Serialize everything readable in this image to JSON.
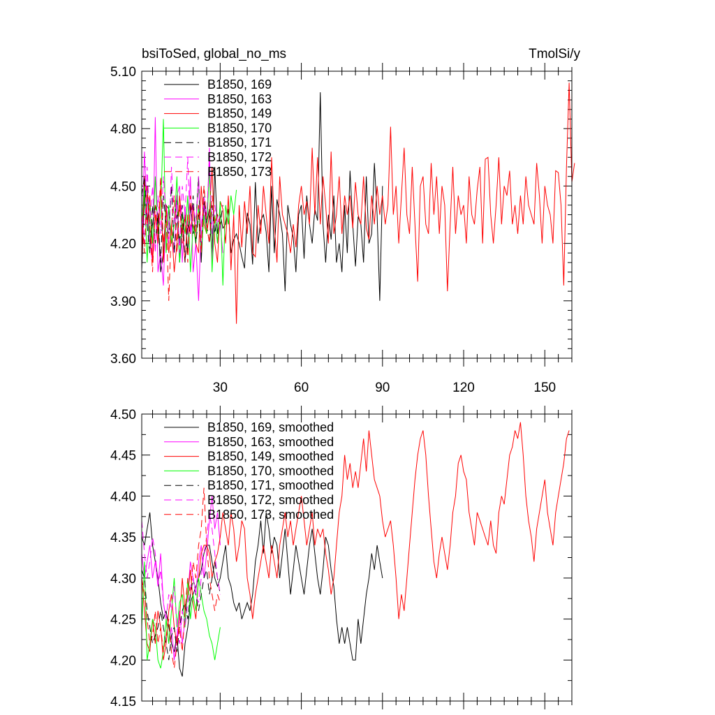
{
  "chart_data": [
    {
      "type": "line",
      "title_left": "bsiToSed, global_no_ms",
      "title_right": "TmolSi/y",
      "xlim": [
        1,
        160
      ],
      "ylim": [
        3.6,
        5.1
      ],
      "yticks": [
        "3.60",
        "3.90",
        "4.20",
        "4.50",
        "4.80",
        "5.10"
      ],
      "xticks": [
        "30",
        "60",
        "90",
        "120",
        "150"
      ],
      "grid": false,
      "legend_position": "top-left",
      "series": [
        {
          "name": "B1850, 169",
          "color": "#000000",
          "dash": "solid",
          "x_start": 1,
          "values": [
            4.06,
            4.45,
            4.5,
            4.2,
            4.3,
            4.4,
            4.35,
            4.05,
            4.15,
            4.4,
            4.38,
            4.2,
            4.3,
            4.45,
            4.1,
            4.28,
            4.35,
            4.15,
            4.4,
            4.25,
            4.3,
            4.55,
            4.1,
            4.42,
            4.3,
            4.38,
            4.12,
            4.6,
            4.25,
            4.35,
            4.28,
            4.3,
            4.38,
            4.15,
            4.22,
            4.25,
            4.2,
            4.13,
            4.07,
            4.36,
            4.3,
            4.09,
            4.52,
            4.2,
            4.32,
            4.35,
            4.26,
            4.05,
            4.5,
            4.15,
            4.43,
            4.35,
            4.25,
            3.95,
            4.4,
            4.3,
            4.23,
            4.05,
            4.35,
            4.4,
            4.12,
            4.45,
            4.3,
            4.2,
            4.38,
            4.32,
            4.99,
            4.3,
            4.1,
            4.35,
            4.22,
            4.45,
            4.1,
            4.2,
            4.05,
            4.4,
            4.15,
            4.58,
            4.3,
            4.08,
            4.34,
            4.3,
            4.1,
            4.55,
            4.2,
            4.25,
            4.62,
            4.35,
            3.9,
            4.5
          ]
        },
        {
          "name": "B1850, 163",
          "color": "#ff00ff",
          "dash": "solid",
          "x_start": 1,
          "values": [
            4.2,
            4.68,
            4.35,
            4.2,
            4.1,
            4.86,
            4.05,
            4.15,
            3.98,
            4.4,
            4.3,
            4.22,
            4.15,
            4.45,
            4.5,
            4.1,
            4.38,
            4.25,
            4.55,
            4.05,
            4.2,
            3.9,
            4.3,
            4.4,
            4.25,
            4.7,
            4.1,
            4.35,
            4.2,
            4.3,
            4.15
          ]
        },
        {
          "name": "B1850, 149",
          "color": "#ff0000",
          "dash": "solid",
          "x_start": 1,
          "values": [
            4.12,
            4.55,
            4.3,
            4.45,
            4.1,
            4.35,
            4.2,
            4.5,
            4.1,
            4.4,
            4.15,
            4.3,
            4.05,
            4.2,
            4.45,
            4.3,
            4.1,
            4.35,
            4.25,
            4.4,
            4.2,
            4.15,
            4.5,
            4.3,
            4.25,
            4.35,
            4.6,
            4.2,
            4.1,
            4.42,
            4.38,
            4.2,
            4.45,
            4.06,
            4.35,
            3.78,
            4.4,
            4.18,
            4.42,
            4.25,
            4.5,
            4.15,
            4.13,
            4.4,
            4.25,
            4.5,
            4.35,
            4.2,
            4.65,
            4.3,
            4.1,
            4.55,
            4.35,
            4.3,
            4.25,
            4.15,
            4.3,
            4.18,
            4.4,
            4.5,
            4.35,
            4.42,
            4.3,
            4.7,
            4.35,
            4.65,
            4.3,
            4.55,
            4.4,
            4.2,
            4.68,
            4.25,
            4.35,
            4.55,
            4.25,
            4.45,
            4.35,
            4.45,
            4.28,
            4.52,
            4.35,
            4.3,
            4.55,
            4.28,
            4.22,
            4.45,
            4.3,
            4.5,
            4.35,
            4.45,
            4.3,
            4.4,
            4.81,
            4.35,
            4.5,
            4.2,
            4.45,
            4.7,
            4.35,
            4.25,
            4.6,
            4.3,
            4.0,
            4.5,
            4.55,
            4.3,
            4.25,
            4.62,
            4.35,
            4.55,
            4.25,
            4.5,
            4.4,
            3.95,
            4.3,
            4.6,
            4.25,
            4.45,
            4.35,
            4.4,
            4.2,
            4.55,
            4.35,
            4.3,
            4.48,
            4.6,
            4.2,
            4.64,
            4.65,
            4.35,
            4.2,
            4.4,
            4.65,
            4.3,
            4.5,
            4.45,
            4.58,
            4.3,
            4.4,
            4.25,
            4.45,
            4.3,
            4.55,
            4.4,
            4.35,
            4.3,
            4.62,
            4.45,
            4.2,
            4.5,
            4.4,
            4.35,
            4.2,
            4.58,
            4.57,
            4.4,
            3.98,
            4.6,
            5.04,
            4.52,
            4.62
          ]
        },
        {
          "name": "B1850, 170",
          "color": "#00ff00",
          "dash": "solid",
          "x_start": 1,
          "values": [
            4.3,
            4.5,
            4.1,
            4.4,
            4.2,
            4.55,
            4.25,
            4.35,
            4.85,
            4.15,
            4.4,
            4.2,
            4.3,
            4.55,
            4.1,
            4.35,
            4.25,
            4.45,
            4.05,
            4.3,
            4.2,
            4.4,
            4.15,
            4.35,
            4.25,
            4.6,
            4.05,
            4.35,
            4.2,
            4.42,
            3.98,
            4.4,
            4.3,
            4.45,
            4.35,
            4.48
          ]
        },
        {
          "name": "B1850, 171",
          "color": "#000000",
          "dash": "dashed",
          "x_start": 1,
          "values": [
            4.45,
            4.55,
            4.3,
            4.15,
            4.4,
            4.2,
            4.35,
            4.1,
            4.45,
            4.3,
            4.25,
            4.5,
            4.15,
            4.35,
            4.2,
            4.4,
            4.1,
            4.3,
            4.25,
            4.45,
            4.2,
            4.35,
            4.15,
            4.5,
            4.3,
            4.2,
            4.4,
            4.25,
            4.35,
            4.3,
            4.4
          ]
        },
        {
          "name": "B1850, 172",
          "color": "#ff00ff",
          "dash": "dashed",
          "x_start": 1,
          "values": [
            4.4,
            4.2,
            4.6,
            4.3,
            4.5,
            4.15,
            4.45,
            4.25,
            4.55,
            4.35,
            4.2,
            4.6,
            4.3,
            4.45,
            4.15,
            4.5,
            4.35,
            4.65,
            4.25,
            4.4,
            4.3,
            4.55,
            4.2,
            4.45,
            4.35,
            4.62,
            4.25,
            4.4,
            4.3,
            4.35
          ]
        },
        {
          "name": "B1850, 173",
          "color": "#ff0000",
          "dash": "dashed",
          "x_start": 1,
          "values": [
            4.35,
            4.15,
            4.5,
            4.3,
            4.05,
            4.4,
            4.25,
            4.55,
            4.2,
            4.35,
            3.9,
            4.3,
            4.45,
            4.15,
            4.4,
            4.2,
            4.35,
            4.1,
            4.45,
            4.3,
            4.25,
            4.4,
            4.15,
            4.5,
            4.3,
            4.2,
            4.45,
            4.3,
            4.35,
            4.3
          ]
        }
      ]
    },
    {
      "type": "line",
      "xlim": [
        1,
        160
      ],
      "ylim": [
        4.15,
        4.5
      ],
      "yticks": [
        "4.15",
        "4.20",
        "4.25",
        "4.30",
        "4.35",
        "4.40",
        "4.45",
        "4.50"
      ],
      "xticks": [],
      "grid": false,
      "legend_position": "top-left",
      "series": [
        {
          "name": "B1850, 169, smoothed",
          "color": "#000000",
          "dash": "solid",
          "x_start": 1,
          "values": [
            4.35,
            4.34,
            4.36,
            4.38,
            4.34,
            4.32,
            4.3,
            4.27,
            4.25,
            4.26,
            4.24,
            4.22,
            4.21,
            4.23,
            4.19,
            4.18,
            4.22,
            4.24,
            4.27,
            4.28,
            4.29,
            4.3,
            4.31,
            4.33,
            4.34,
            4.34,
            4.32,
            4.3,
            4.29,
            4.3,
            4.32,
            4.34,
            4.3,
            4.29,
            4.27,
            4.26,
            4.27,
            4.25,
            4.26,
            4.27,
            4.26,
            4.28,
            4.32,
            4.34,
            4.37,
            4.33,
            4.38,
            4.36,
            4.33,
            4.35,
            4.34,
            4.3,
            4.33,
            4.36,
            4.32,
            4.28,
            4.31,
            4.34,
            4.32,
            4.3,
            4.28,
            4.31,
            4.34,
            4.36,
            4.33,
            4.3,
            4.28,
            4.31,
            4.35,
            4.34,
            4.31,
            4.29,
            4.25,
            4.22,
            4.24,
            4.22,
            4.24,
            4.22,
            4.2,
            4.2,
            4.25,
            4.22,
            4.25,
            4.28,
            4.3,
            4.33,
            4.31,
            4.34,
            4.32,
            4.3
          ]
        },
        {
          "name": "B1850, 163, smoothed",
          "color": "#ff00ff",
          "dash": "solid",
          "x_start": 1,
          "values": [
            4.33,
            4.3,
            4.32,
            4.34,
            4.3,
            4.32,
            4.29,
            4.33,
            4.27,
            4.25,
            4.22,
            4.24,
            4.2,
            4.23,
            4.26,
            4.22,
            4.25,
            4.28,
            4.32,
            4.3,
            4.28,
            4.32,
            4.34,
            4.3,
            4.33,
            4.37,
            4.4,
            4.36,
            4.38,
            4.34
          ]
        },
        {
          "name": "B1850, 149, smoothed",
          "color": "#ff0000",
          "dash": "solid",
          "x_start": 1,
          "values": [
            4.3,
            4.26,
            4.22,
            4.21,
            4.25,
            4.22,
            4.26,
            4.24,
            4.2,
            4.22,
            4.26,
            4.28,
            4.24,
            4.22,
            4.25,
            4.3,
            4.26,
            4.28,
            4.31,
            4.27,
            4.25,
            4.3,
            4.33,
            4.34,
            4.34,
            4.33,
            4.3,
            4.32,
            4.33,
            4.35,
            4.38,
            4.36,
            4.34,
            4.38,
            4.36,
            4.32,
            4.34,
            4.37,
            4.36,
            4.3,
            4.28,
            4.25,
            4.28,
            4.3,
            4.32,
            4.34,
            4.32,
            4.3,
            4.34,
            4.32,
            4.3,
            4.34,
            4.36,
            4.38,
            4.35,
            4.37,
            4.34,
            4.36,
            4.38,
            4.4,
            4.37,
            4.34,
            4.36,
            4.38,
            4.34,
            4.36,
            4.35,
            4.36,
            4.33,
            4.31,
            4.28,
            4.3,
            4.34,
            4.38,
            4.4,
            4.45,
            4.42,
            4.44,
            4.41,
            4.43,
            4.41,
            4.44,
            4.47,
            4.43,
            4.48,
            4.45,
            4.42,
            4.41,
            4.4,
            4.37,
            4.35,
            4.36,
            4.37,
            4.34,
            4.3,
            4.25,
            4.28,
            4.26,
            4.3,
            4.34,
            4.38,
            4.42,
            4.45,
            4.47,
            4.48,
            4.45,
            4.4,
            4.36,
            4.32,
            4.3,
            4.33,
            4.35,
            4.33,
            4.31,
            4.34,
            4.38,
            4.4,
            4.44,
            4.45,
            4.43,
            4.42,
            4.38,
            4.36,
            4.34,
            4.38,
            4.37,
            4.36,
            4.35,
            4.34,
            4.37,
            4.34,
            4.33,
            4.38,
            4.4,
            4.39,
            4.42,
            4.45,
            4.46,
            4.48,
            4.47,
            4.49,
            4.45,
            4.4,
            4.37,
            4.35,
            4.32,
            4.36,
            4.38,
            4.4,
            4.42,
            4.38,
            4.36,
            4.34,
            4.38,
            4.4,
            4.42,
            4.44,
            4.47,
            4.48
          ]
        },
        {
          "name": "B1850, 170, smoothed",
          "color": "#00ff00",
          "dash": "solid",
          "x_start": 1,
          "values": [
            4.24,
            4.32,
            4.2,
            4.22,
            4.25,
            4.24,
            4.2,
            4.19,
            4.21,
            4.25,
            4.22,
            4.26,
            4.3,
            4.24,
            4.27,
            4.28,
            4.24,
            4.3,
            4.25,
            4.28,
            4.26,
            4.3,
            4.28,
            4.26,
            4.25,
            4.23,
            4.22,
            4.2,
            4.22,
            4.24
          ]
        },
        {
          "name": "B1850, 171, smoothed",
          "color": "#000000",
          "dash": "dashed",
          "x_start": 1,
          "values": [
            4.31,
            4.3,
            4.26,
            4.24,
            4.22,
            4.23,
            4.24,
            4.26,
            4.24,
            4.22,
            4.2,
            4.23,
            4.24,
            4.21,
            4.24,
            4.26,
            4.27,
            4.25,
            4.28,
            4.3,
            4.28,
            4.26,
            4.28,
            4.3,
            4.31,
            4.28,
            4.3,
            4.32,
            4.3,
            4.28
          ]
        },
        {
          "name": "B1850, 172, smoothed",
          "color": "#ff00ff",
          "dash": "dashed",
          "x_start": 1,
          "values": [
            4.37,
            4.33,
            4.3,
            4.32,
            4.35,
            4.33,
            4.29,
            4.31,
            4.27,
            4.25,
            4.28,
            4.26,
            4.29,
            4.24,
            4.22,
            4.26,
            4.24,
            4.27,
            4.29,
            4.3,
            4.28,
            4.27,
            4.3,
            4.33,
            4.35,
            4.38,
            4.36,
            4.33,
            4.3,
            4.28
          ]
        },
        {
          "name": "B1850, 173, smoothed",
          "color": "#ff0000",
          "dash": "dashed",
          "x_start": 1,
          "values": [
            4.3,
            4.28,
            4.25,
            4.22,
            4.23,
            4.26,
            4.22,
            4.24,
            4.21,
            4.23,
            4.25,
            4.21,
            4.19,
            4.22,
            4.24,
            4.21,
            4.26,
            4.3,
            4.28,
            4.32,
            4.3,
            4.34,
            4.36,
            4.41,
            4.34,
            4.3,
            4.28,
            4.26,
            4.28,
            4.27
          ]
        }
      ]
    }
  ]
}
